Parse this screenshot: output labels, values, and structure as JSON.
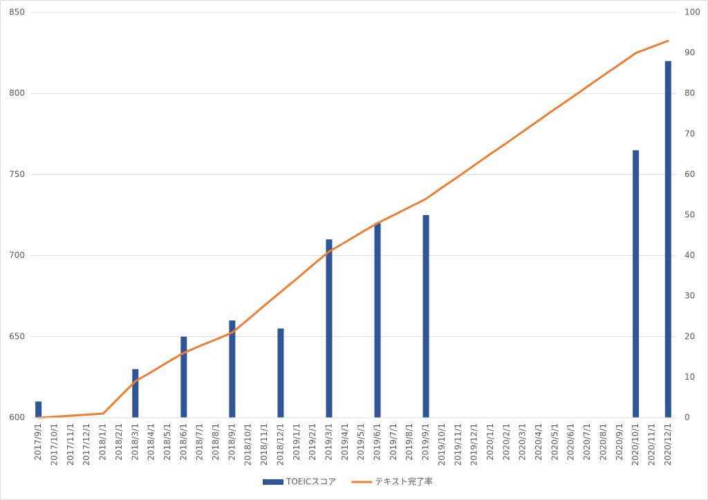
{
  "chart_data": {
    "type": "bar-line",
    "categories": [
      "2017/9/1",
      "2017/10/1",
      "2017/11/1",
      "2017/12/1",
      "2018/1/1",
      "2018/2/1",
      "2018/3/1",
      "2018/4/1",
      "2018/5/1",
      "2018/6/1",
      "2018/7/1",
      "2018/8/1",
      "2018/9/1",
      "2018/10/1",
      "2018/11/1",
      "2018/12/1",
      "2019/1/1",
      "2019/2/1",
      "2019/3/1",
      "2019/4/1",
      "2019/5/1",
      "2019/6/1",
      "2019/7/1",
      "2019/8/1",
      "2019/9/1",
      "2019/10/1",
      "2019/11/1",
      "2019/12/1",
      "2020/1/1",
      "2020/2/1",
      "2020/3/1",
      "2020/4/1",
      "2020/5/1",
      "2020/6/1",
      "2020/7/1",
      "2020/8/1",
      "2020/9/1",
      "2020/10/1",
      "2020/11/1",
      "2020/12/1"
    ],
    "series": [
      {
        "name": "TOEICスコア",
        "type": "bar",
        "color": "#2f5597",
        "values": [
          610,
          null,
          null,
          null,
          null,
          null,
          630,
          null,
          null,
          650,
          null,
          null,
          660,
          null,
          null,
          655,
          null,
          null,
          710,
          null,
          null,
          720,
          null,
          null,
          725,
          null,
          null,
          null,
          null,
          null,
          null,
          null,
          null,
          null,
          null,
          null,
          null,
          765,
          null,
          820
        ]
      },
      {
        "name": "テキスト完了率",
        "type": "line",
        "axis": "y2",
        "color": "#ed7d31",
        "values": [
          0,
          0.25,
          0.5,
          0.75,
          1,
          5,
          9,
          11.3,
          13.7,
          16,
          17.7,
          19.3,
          21,
          24.3,
          27.7,
          31,
          34.3,
          37.7,
          41,
          43.3,
          45.7,
          48,
          50,
          52,
          54,
          56.8,
          59.5,
          62.3,
          65.1,
          67.8,
          70.6,
          73.4,
          76.2,
          78.9,
          81.7,
          84.5,
          87.2,
          90,
          91.5,
          93
        ]
      }
    ],
    "ylim": [
      600,
      850
    ],
    "yticks": [
      600,
      650,
      700,
      750,
      800,
      850
    ],
    "y2lim": [
      0,
      100
    ],
    "y2ticks": [
      0,
      10,
      20,
      30,
      40,
      50,
      60,
      70,
      80,
      90,
      100
    ],
    "grid": true,
    "legend": "bottom"
  }
}
